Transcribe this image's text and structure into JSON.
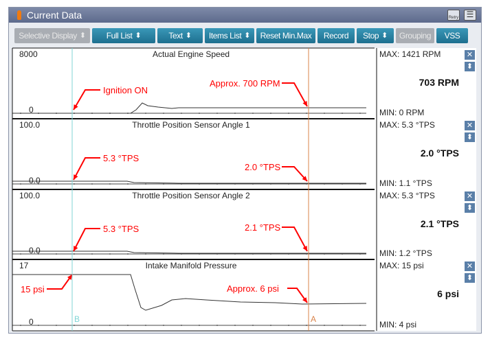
{
  "window": {
    "title": "Current Data",
    "retry_label": "Retry"
  },
  "toolbar": [
    {
      "label": "Selective Display",
      "chevron": true,
      "enabled": false
    },
    {
      "label": "Full List",
      "chevron": true,
      "enabled": true
    },
    {
      "label": "Text",
      "chevron": true,
      "enabled": true
    },
    {
      "label": "Items List",
      "chevron": true,
      "enabled": true
    },
    {
      "label": "Reset Min.Max",
      "chevron": false,
      "enabled": true
    },
    {
      "label": "Record",
      "chevron": false,
      "enabled": true
    },
    {
      "label": "Stop",
      "chevron": true,
      "enabled": true
    },
    {
      "label": "Grouping",
      "chevron": false,
      "enabled": false
    },
    {
      "label": "VSS",
      "chevron": false,
      "enabled": true
    }
  ],
  "panels": [
    {
      "title": "Actual Engine Speed",
      "ymax": "8000",
      "ymin": "0",
      "max": "MAX:   1421 RPM",
      "min": "MIN:     0 RPM",
      "value": "703 RPM",
      "annotations": [
        {
          "text": "Ignition ON"
        },
        {
          "text": "Approx. 700 RPM"
        }
      ]
    },
    {
      "title": "Throttle Position Sensor Angle 1",
      "ymax": "100.0",
      "ymin": "0.0",
      "max": "MAX:   5.3 °TPS",
      "min": "MIN:   1.1 °TPS",
      "value": "2.0 °TPS",
      "annotations": [
        {
          "text": "5.3 °TPS"
        },
        {
          "text": "2.0 °TPS"
        }
      ]
    },
    {
      "title": "Throttle Position Sensor Angle 2",
      "ymax": "100.0",
      "ymin": "0.0",
      "max": "MAX:   5.3 °TPS",
      "min": "MIN:   1.2 °TPS",
      "value": "2.1 °TPS",
      "annotations": [
        {
          "text": "5.3 °TPS"
        },
        {
          "text": "2.1 °TPS"
        }
      ]
    },
    {
      "title": "Intake Manifold Pressure",
      "ymax": "17",
      "ymin": "0",
      "max": "MAX:    15 psi",
      "min": "MIN:     4 psi",
      "value": "6 psi",
      "annotations": [
        {
          "text": "15 psi"
        },
        {
          "text": "Approx. 6 psi"
        }
      ]
    }
  ],
  "cursors": {
    "b_label": "B",
    "a_label": "A",
    "b_color": "#7fd6d6",
    "a_color": "#d9834a"
  },
  "colors": {
    "annotation": "#ff0000",
    "button": "#1d7fa0",
    "title_bar": "#6b779a"
  }
}
